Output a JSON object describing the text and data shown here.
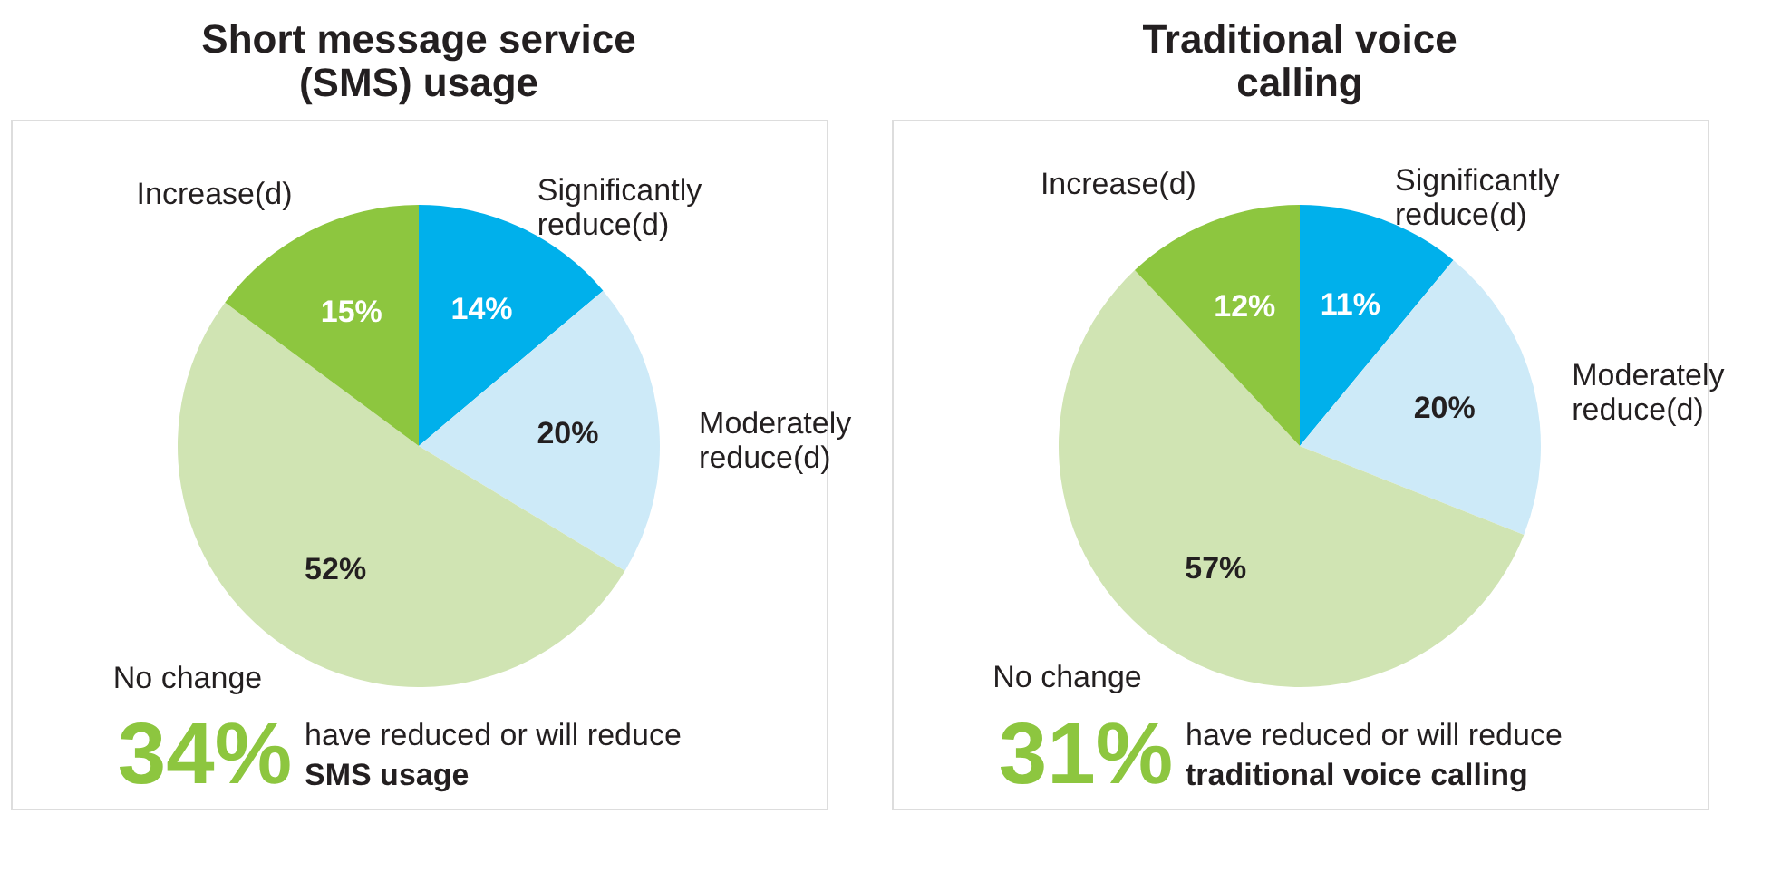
{
  "chart_data": [
    {
      "type": "pie",
      "title": "Short message service (SMS) usage",
      "categories": [
        "Significantly reduce(d)",
        "Moderately reduce(d)",
        "No change",
        "Increase(d)"
      ],
      "values": [
        14,
        20,
        52,
        15
      ],
      "colors": [
        "#00b0eb",
        "#cdeaf8",
        "#d0e4b3",
        "#8dc63f"
      ],
      "value_labels": [
        "14%",
        "20%",
        "52%",
        "15%"
      ],
      "annotations": [
        "34%",
        "have reduced or will reduce",
        "SMS usage"
      ]
    },
    {
      "type": "pie",
      "title": "Traditional voice calling",
      "categories": [
        "Significantly reduce(d)",
        "Moderately reduce(d)",
        "No change",
        "Increase(d)"
      ],
      "values": [
        11,
        20,
        57,
        12
      ],
      "colors": [
        "#00b0eb",
        "#cdeaf8",
        "#d0e4b3",
        "#8dc63f"
      ],
      "value_labels": [
        "11%",
        "20%",
        "57%",
        "12%"
      ],
      "annotations": [
        "31%",
        "have reduced or will reduce",
        "traditional voice calling"
      ]
    }
  ]
}
